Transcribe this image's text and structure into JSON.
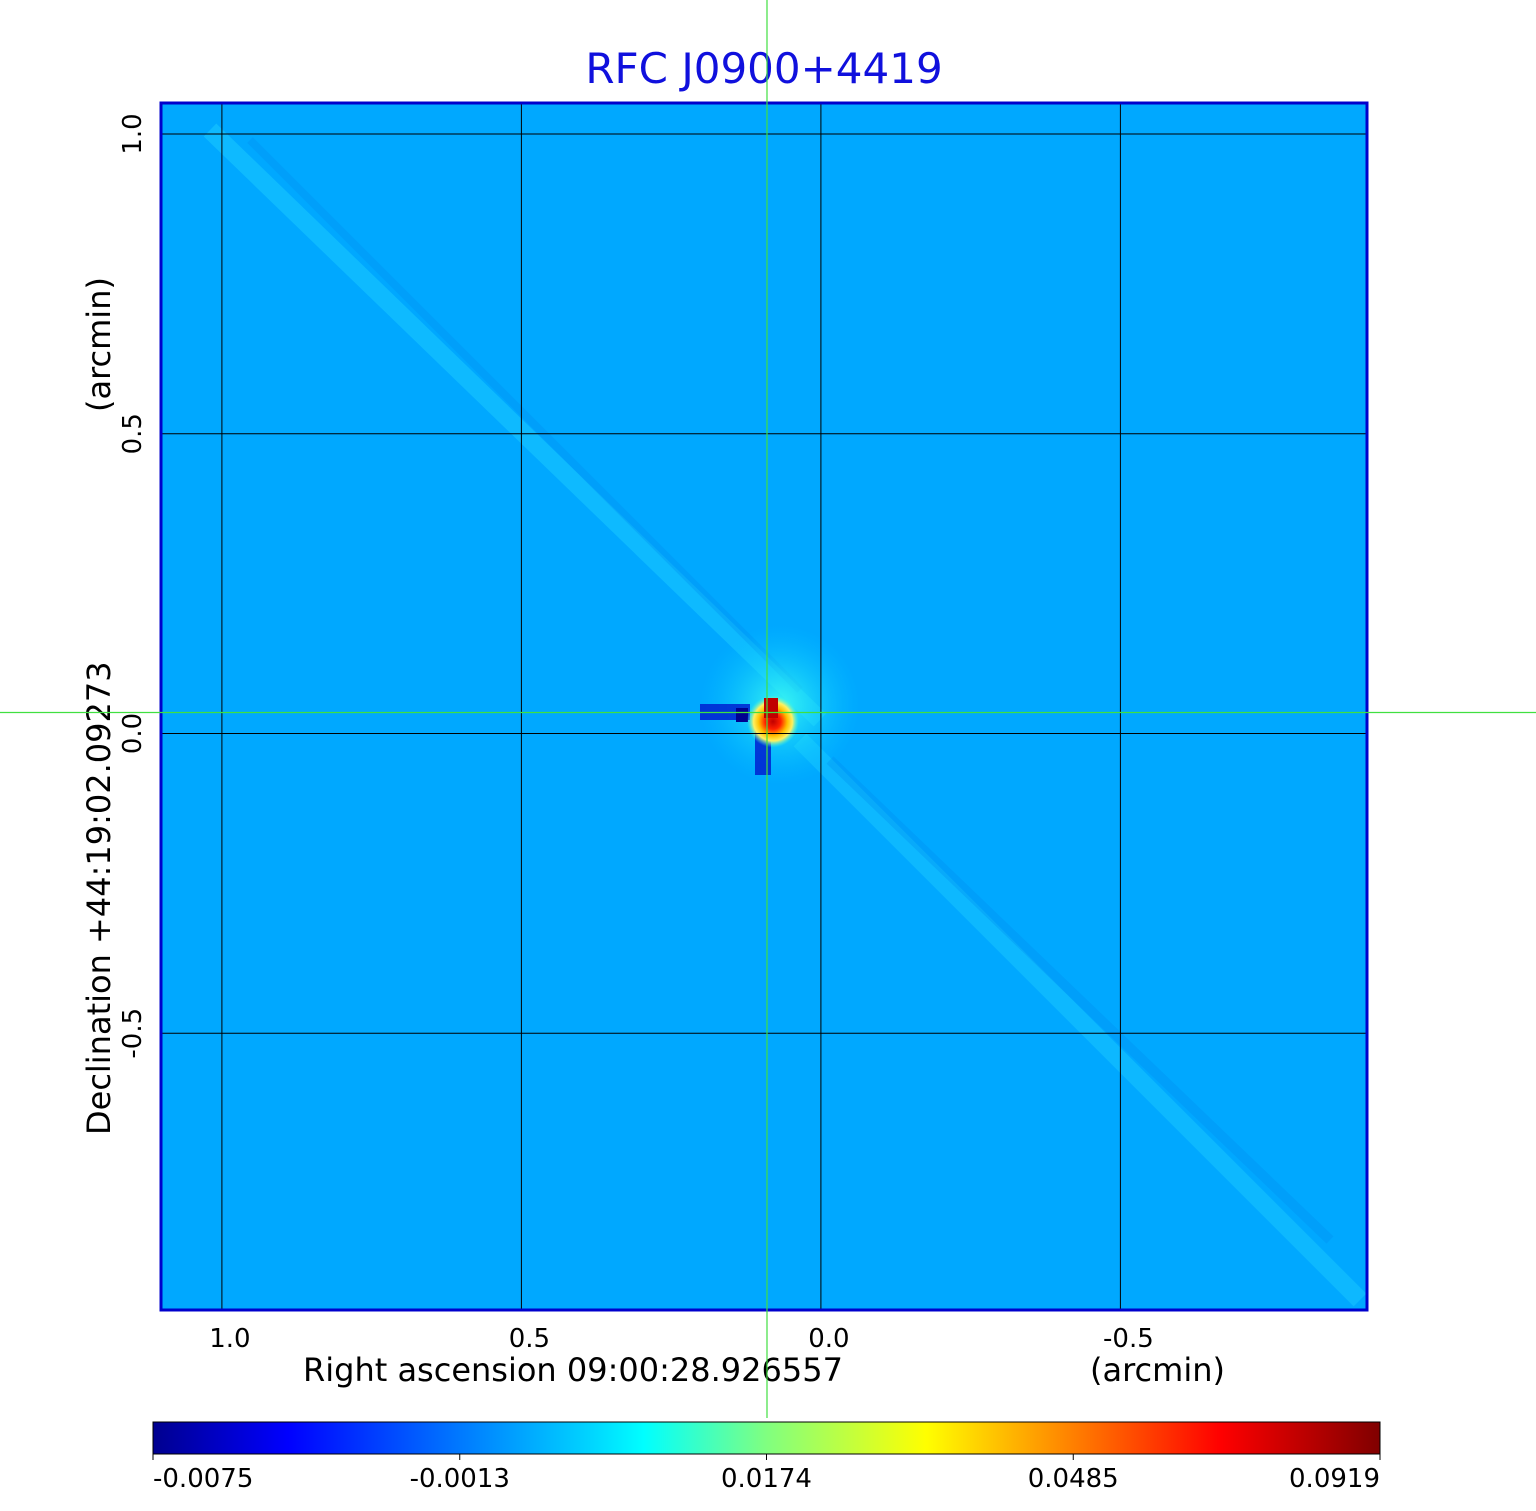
{
  "chart_data": {
    "type": "heatmap",
    "title": "RFC J0900+4419",
    "xlabel": "Right ascension  09:00:28.926557",
    "xunit": "(arcmin)",
    "ylabel": "Declination  +44:19:02.09273",
    "yunit": "(arcmin)",
    "x_ticks": [
      1.0,
      0.5,
      0.0,
      -0.5
    ],
    "x_tick_labels": [
      "1.0",
      "0.5",
      "0.0",
      "-0.5"
    ],
    "y_ticks": [
      1.0,
      0.5,
      0.0,
      -0.5
    ],
    "y_tick_labels": [
      "1.0",
      "0.5",
      "0.0",
      "-0.5"
    ],
    "xlim": [
      1.1,
      -0.91
    ],
    "ylim": [
      -0.96,
      1.05
    ],
    "grid": true,
    "colormap": "jet",
    "colorbar_ticks": [
      "-0.0075",
      "-0.0013",
      "0.0174",
      "0.0485",
      "0.0919"
    ],
    "colorbar_range": [
      -0.0075,
      0.0919
    ],
    "peak": {
      "x": 0.08,
      "y": 0.02,
      "value": 0.0919
    },
    "crosshair": {
      "x": 0.09,
      "y": 0.035
    },
    "colors": {
      "title": "#1010dd",
      "frame": "#0000cc",
      "background_level": "#00a8ff",
      "crosshair": "#40e040"
    }
  }
}
